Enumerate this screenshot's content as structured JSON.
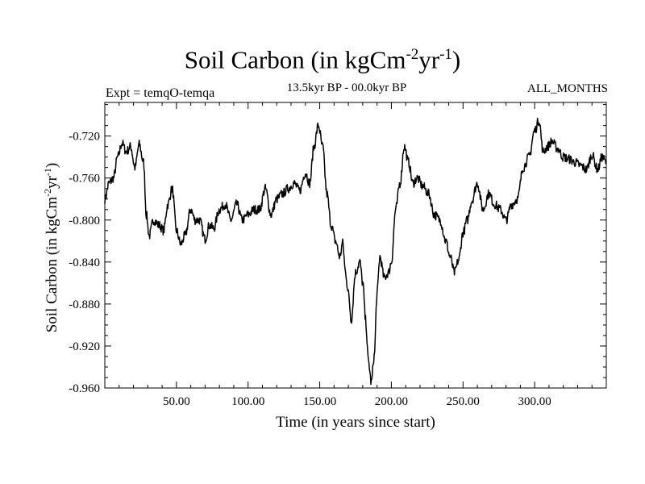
{
  "chart_data": {
    "type": "line",
    "title": {
      "main": "Soil Carbon (in kgCm",
      "sup1": "-2",
      "mid": "yr",
      "sup2": "-1",
      "end": ")"
    },
    "subtitle_left": "Expt = temqO-temqa",
    "subtitle_center": "13.5kyr BP - 00.0kyr BP",
    "subtitle_right": "ALL_MONTHS",
    "xlabel": "Time (in years since start)",
    "ylabel": {
      "main": "Soil Carbon (in kgCm",
      "sup1": "-2",
      "mid": "yr",
      "sup2": "-1",
      "end": ")"
    },
    "xlim": [
      0,
      350
    ],
    "ylim": [
      -0.96,
      -0.688
    ],
    "x_ticks": [
      50,
      100,
      150,
      200,
      250,
      300
    ],
    "x_tick_labels": [
      "50.00",
      "100.00",
      "150.00",
      "200.00",
      "250.00",
      "300.00"
    ],
    "y_ticks": [
      -0.72,
      -0.76,
      -0.8,
      -0.84,
      -0.88,
      -0.92,
      -0.96
    ],
    "y_tick_labels": [
      "-0.720",
      "-0.760",
      "-0.800",
      "-0.840",
      "-0.880",
      "-0.920",
      "-0.960"
    ],
    "grid": false,
    "line_color": "#000000",
    "series": [
      {
        "x": [
          0,
          3,
          6,
          9,
          12,
          15,
          18,
          21,
          24,
          27,
          29,
          31,
          34,
          38,
          41,
          44,
          47,
          50,
          53,
          56,
          60,
          63,
          66,
          70,
          73,
          76,
          80,
          84,
          88,
          92,
          96,
          100,
          104,
          108,
          112,
          116,
          120,
          124,
          128,
          132,
          136,
          140,
          143,
          146,
          149,
          152,
          155,
          158,
          161,
          164,
          166,
          168,
          170,
          172,
          175,
          178,
          180,
          182,
          184,
          186,
          188,
          190,
          192,
          195,
          198,
          200,
          203,
          206,
          209,
          212,
          215,
          218,
          222,
          226,
          230,
          234,
          238,
          241,
          244,
          247,
          250,
          253,
          256,
          260,
          264,
          268,
          272,
          276,
          280,
          284,
          288,
          292,
          296,
          300,
          303,
          306,
          309,
          312,
          316,
          320,
          324,
          328,
          332,
          336,
          340,
          344,
          347,
          350
        ],
        "y": [
          -0.78,
          -0.765,
          -0.76,
          -0.74,
          -0.727,
          -0.735,
          -0.73,
          -0.75,
          -0.728,
          -0.745,
          -0.795,
          -0.815,
          -0.8,
          -0.805,
          -0.81,
          -0.785,
          -0.77,
          -0.81,
          -0.823,
          -0.815,
          -0.79,
          -0.8,
          -0.8,
          -0.818,
          -0.805,
          -0.808,
          -0.79,
          -0.785,
          -0.8,
          -0.785,
          -0.8,
          -0.795,
          -0.79,
          -0.79,
          -0.77,
          -0.795,
          -0.78,
          -0.775,
          -0.77,
          -0.765,
          -0.772,
          -0.755,
          -0.765,
          -0.73,
          -0.71,
          -0.73,
          -0.775,
          -0.805,
          -0.82,
          -0.835,
          -0.822,
          -0.85,
          -0.87,
          -0.895,
          -0.85,
          -0.84,
          -0.86,
          -0.895,
          -0.935,
          -0.955,
          -0.93,
          -0.87,
          -0.835,
          -0.855,
          -0.85,
          -0.84,
          -0.79,
          -0.765,
          -0.73,
          -0.745,
          -0.765,
          -0.76,
          -0.768,
          -0.775,
          -0.795,
          -0.8,
          -0.82,
          -0.835,
          -0.85,
          -0.838,
          -0.812,
          -0.8,
          -0.782,
          -0.765,
          -0.79,
          -0.775,
          -0.785,
          -0.79,
          -0.8,
          -0.785,
          -0.78,
          -0.75,
          -0.74,
          -0.715,
          -0.705,
          -0.735,
          -0.73,
          -0.725,
          -0.732,
          -0.74,
          -0.742,
          -0.745,
          -0.748,
          -0.752,
          -0.738,
          -0.752,
          -0.74,
          -0.745
        ]
      }
    ]
  }
}
